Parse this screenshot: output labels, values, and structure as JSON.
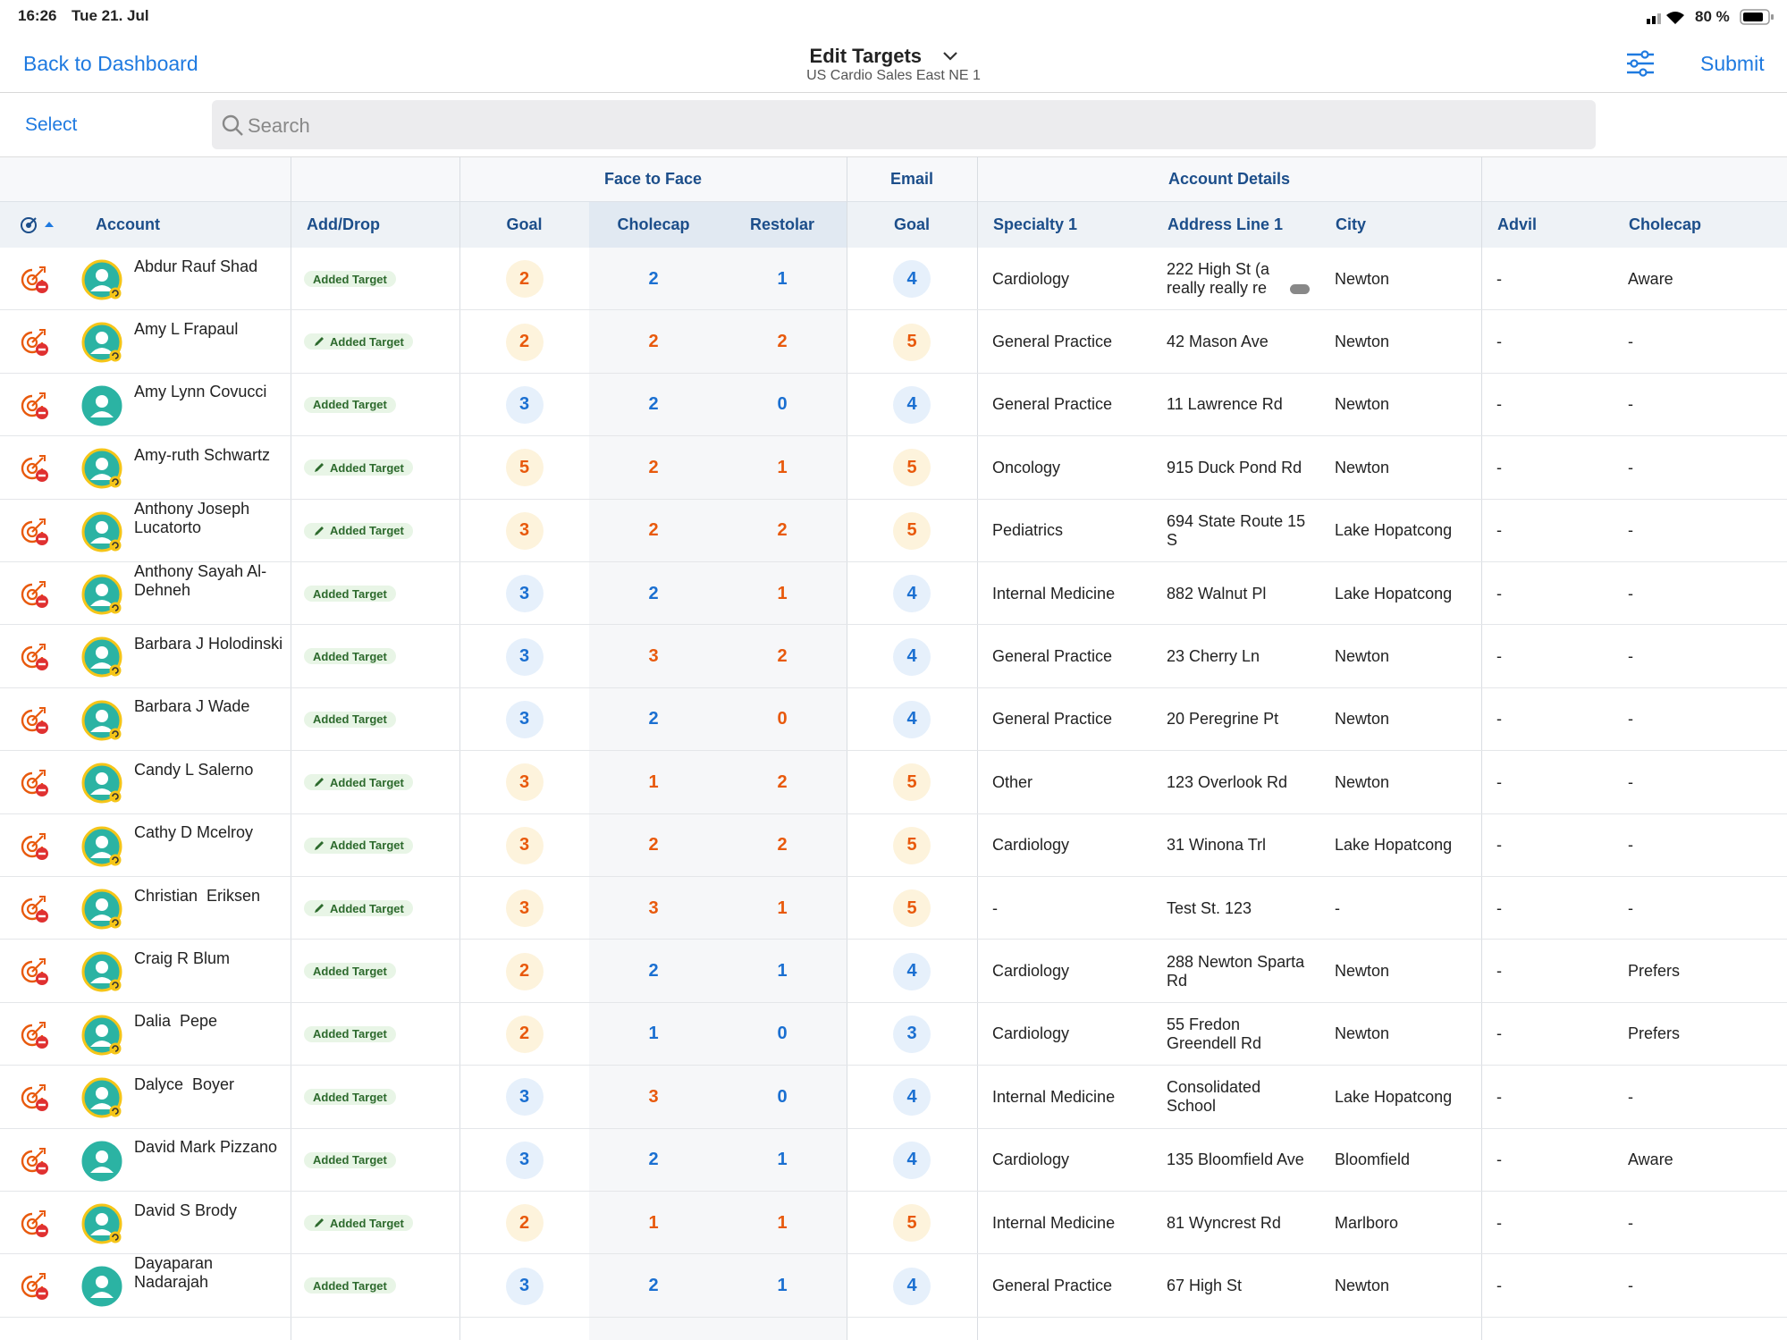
{
  "status": {
    "time": "16:26",
    "date": "Tue 21. Jul",
    "battery": "80 %"
  },
  "nav": {
    "back": "Back to Dashboard",
    "title": "Edit Targets",
    "subtitle": "US Cardio Sales East NE 1",
    "submit": "Submit"
  },
  "toolbar": {
    "select": "Select",
    "search": "Search"
  },
  "table": {
    "groups": [
      "Face to Face",
      "Email",
      "Account Details"
    ],
    "columns": [
      "Account",
      "Add/Drop",
      "Goal",
      "Cholecap",
      "Restolar",
      "Goal",
      "Specialty 1",
      "Address Line 1",
      "City",
      "Advil",
      "Cholecap"
    ],
    "rows": [
      [
        "Abdur Rauf Shad",
        "Added Target",
        2,
        2,
        1,
        4,
        "Cardiology",
        "222 High St (a really really re",
        "Newton",
        "-",
        "Aware"
      ],
      [
        "Amy L Frapaul",
        "Added Target",
        2,
        2,
        2,
        5,
        "General Practice",
        "42 Mason Ave",
        "Newton",
        "-",
        "-"
      ],
      [
        "Amy Lynn Covucci",
        "Added Target",
        3,
        2,
        0,
        4,
        "General Practice",
        "11 Lawrence Rd",
        "Newton",
        "-",
        "-"
      ],
      [
        "Amy-ruth Schwartz",
        "Added Target",
        5,
        2,
        1,
        5,
        "Oncology",
        "915 Duck Pond Rd",
        "Newton",
        "-",
        "-"
      ],
      [
        "Anthony Joseph Lucatorto",
        "Added Target",
        3,
        2,
        2,
        5,
        "Pediatrics",
        "694 State Route 15 S",
        "Lake Hopatcong",
        "-",
        "-"
      ],
      [
        "Anthony Sayah Al-Dehneh",
        "Added Target",
        3,
        2,
        1,
        4,
        "Internal Medicine",
        "882 Walnut Pl",
        "Lake Hopatcong",
        "-",
        "-"
      ],
      [
        "Barbara J Holodinski",
        "Added Target",
        3,
        3,
        2,
        4,
        "General Practice",
        "23 Cherry Ln",
        "Newton",
        "-",
        "-"
      ],
      [
        "Barbara J Wade",
        "Added Target",
        3,
        2,
        0,
        4,
        "General Practice",
        "20 Peregrine Pt",
        "Newton",
        "-",
        "-"
      ],
      [
        "Candy L Salerno",
        "Added Target",
        3,
        1,
        2,
        5,
        "Other",
        "123 Overlook Rd",
        "Newton",
        "-",
        "-"
      ],
      [
        "Cathy D Mcelroy",
        "Added Target",
        3,
        2,
        2,
        5,
        "Cardiology",
        "31 Winona Trl",
        "Lake Hopatcong",
        "-",
        "-"
      ],
      [
        "Christian  Eriksen",
        "Added Target",
        3,
        3,
        1,
        5,
        "-",
        "Test St. 123",
        "-",
        "-",
        "-"
      ],
      [
        "Craig R Blum",
        "Added Target",
        2,
        2,
        1,
        4,
        "Cardiology",
        "288 Newton Sparta Rd",
        "Newton",
        "-",
        "Prefers"
      ],
      [
        "Dalia  Pepe",
        "Added Target",
        2,
        1,
        0,
        3,
        "Cardiology",
        "55 Fredon Greendell Rd",
        "Newton",
        "-",
        "Prefers"
      ],
      [
        "Dalyce  Boyer",
        "Added Target",
        3,
        3,
        0,
        4,
        "Internal Medicine",
        "Consolidated School",
        "Lake Hopatcong",
        "-",
        "-"
      ],
      [
        "David Mark Pizzano",
        "Added Target",
        3,
        2,
        1,
        4,
        "Cardiology",
        "135 Bloomfield Ave",
        "Bloomfield",
        "-",
        "Aware"
      ],
      [
        "David S Brody",
        "Added Target",
        2,
        1,
        1,
        5,
        "Internal Medicine",
        "81 Wyncrest Rd",
        "Marlboro",
        "-",
        "-"
      ],
      [
        "Dayaparan Nadarajah",
        "Added Target",
        3,
        2,
        1,
        4,
        "General Practice",
        "67 High St",
        "Newton",
        "-",
        "-"
      ]
    ]
  }
}
